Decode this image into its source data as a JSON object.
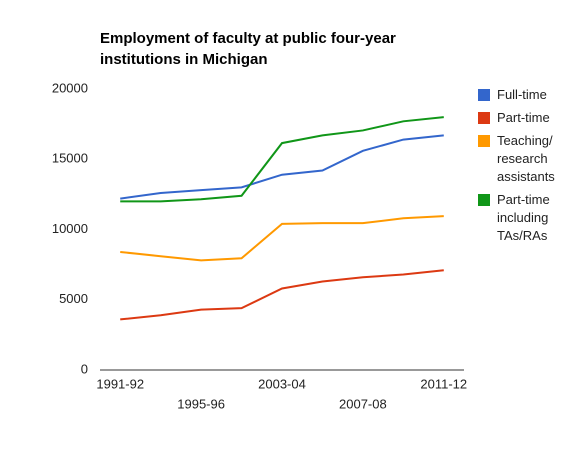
{
  "chart_data": {
    "type": "line",
    "title": "Employment of faculty at public four-year institutions in Michigan",
    "categories": [
      "1991-92",
      null,
      "1995-96",
      null,
      "2003-04",
      null,
      "2007-08",
      null,
      "2011-12"
    ],
    "series": [
      {
        "name": "Full-time",
        "color": "#3366cc",
        "values": [
          12200,
          12600,
          12800,
          13000,
          13900,
          14200,
          15600,
          16400,
          16700
        ]
      },
      {
        "name": "Part-time",
        "color": "#dc3912",
        "values": [
          3600,
          3900,
          4300,
          4400,
          5800,
          6300,
          6600,
          6800,
          7100
        ]
      },
      {
        "name": "Teaching/ research assistants",
        "color": "#ff9900",
        "values": [
          8400,
          8100,
          7800,
          7950,
          10400,
          10450,
          10450,
          10800,
          10950
        ]
      },
      {
        "name": "Part-time including TAs/RAs",
        "color": "#109618",
        "values": [
          12000,
          12000,
          12150,
          12400,
          16150,
          16700,
          17050,
          17700,
          18000
        ]
      }
    ],
    "ylim": [
      0,
      20000
    ],
    "yticks": [
      0,
      5000,
      10000,
      15000,
      20000
    ],
    "legend": "right"
  }
}
